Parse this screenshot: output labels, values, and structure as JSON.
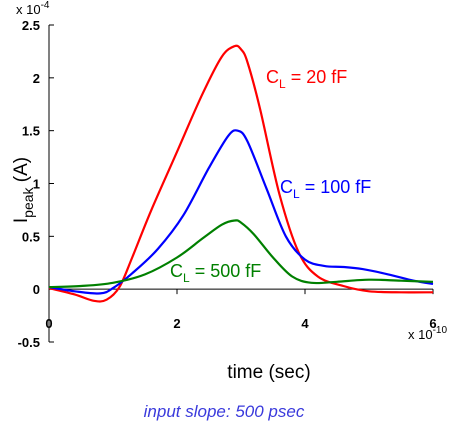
{
  "chart_data": {
    "type": "line",
    "xlabel": "time (sec)",
    "ylabel": "I",
    "ylabel_subscript": "peak",
    "ylabel_unit": " (A)",
    "x_multiplier_text": "x 10",
    "x_multiplier_exp": "-10",
    "y_multiplier_text": "x 10",
    "y_multiplier_exp": "-4",
    "xlim": [
      0,
      6
    ],
    "ylim": [
      -0.5,
      2.5
    ],
    "x_unit_scale": 1e-10,
    "y_unit_scale": 0.0001,
    "x_ticks": [
      {
        "value": 0,
        "label": "0"
      },
      {
        "value": 2,
        "label": "2"
      },
      {
        "value": 4,
        "label": "4"
      },
      {
        "value": 6,
        "label": "6"
      }
    ],
    "y_ticks": [
      {
        "value": -0.5,
        "label": "-0.5"
      },
      {
        "value": 0,
        "label": "0"
      },
      {
        "value": 0.5,
        "label": "0.5"
      },
      {
        "value": 1,
        "label": "1"
      },
      {
        "value": 1.5,
        "label": "1.5"
      },
      {
        "value": 2,
        "label": "2"
      },
      {
        "value": 2.5,
        "label": "2.5"
      }
    ],
    "grid": false,
    "legend": "none (inline labels)",
    "series": [
      {
        "name": "CL = 20 fF",
        "label_main": "C",
        "label_sub": "L",
        "label_rest": " = 20 fF",
        "color": "#ff0000",
        "x": [
          0,
          0.4,
          0.7,
          0.9,
          1.1,
          1.3,
          1.6,
          2.0,
          2.4,
          2.7,
          2.9,
          3.0,
          3.1,
          3.3,
          3.6,
          3.9,
          4.2,
          4.6,
          5.0,
          5.5,
          6.0
        ],
        "y": [
          0.01,
          -0.05,
          -0.11,
          -0.1,
          0.02,
          0.3,
          0.75,
          1.3,
          1.85,
          2.2,
          2.3,
          2.27,
          2.15,
          1.7,
          0.9,
          0.35,
          0.12,
          0.03,
          -0.02,
          -0.03,
          -0.03
        ]
      },
      {
        "name": "CL = 100 fF",
        "label_main": "C",
        "label_sub": "L",
        "label_rest": " = 100 fF",
        "color": "#0000ff",
        "x": [
          0,
          0.4,
          0.8,
          1.0,
          1.3,
          1.7,
          2.1,
          2.5,
          2.8,
          2.95,
          3.1,
          3.4,
          3.7,
          4.0,
          4.3,
          4.6,
          4.9,
          5.3,
          5.7,
          6.0
        ],
        "y": [
          0.02,
          -0.02,
          -0.04,
          0.01,
          0.15,
          0.38,
          0.7,
          1.15,
          1.45,
          1.5,
          1.4,
          0.95,
          0.5,
          0.28,
          0.22,
          0.21,
          0.19,
          0.14,
          0.08,
          0.05
        ]
      },
      {
        "name": "CL = 500 fF",
        "label_main": "C",
        "label_sub": "L",
        "label_rest": " = 500 fF",
        "color": "#008000",
        "x": [
          0,
          0.5,
          1.0,
          1.5,
          2.0,
          2.4,
          2.7,
          2.9,
          3.0,
          3.2,
          3.5,
          3.8,
          4.1,
          4.5,
          5.0,
          5.5,
          6.0
        ],
        "y": [
          0.02,
          0.03,
          0.06,
          0.14,
          0.3,
          0.48,
          0.61,
          0.65,
          0.63,
          0.52,
          0.3,
          0.12,
          0.06,
          0.07,
          0.09,
          0.08,
          0.07
        ]
      }
    ]
  },
  "caption": "input slope: 500 psec"
}
